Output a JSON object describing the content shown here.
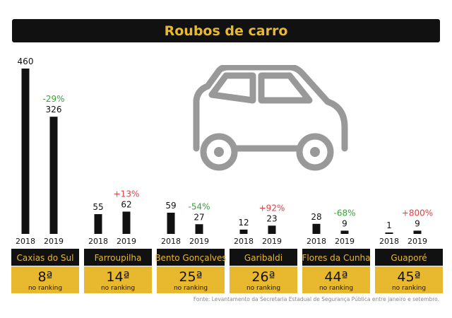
{
  "title": "Roubos de carro",
  "source": "Fonte: Levantamento da Secretaria Estadual de Segurança Pública entre janeiro e setembro.",
  "colors": {
    "accent": "#e8b92e",
    "bar": "#111111",
    "decrease": "#3aa23a",
    "increase": "#e04040",
    "label_bg": "#111111"
  },
  "icon": "car-icon",
  "chart_data": {
    "type": "bar",
    "title": "Roubos de carro",
    "xlabel": "",
    "ylabel": "",
    "ylim": [
      0,
      460
    ],
    "years": [
      "2018",
      "2019"
    ],
    "groups": [
      {
        "city": "Caxias do Sul",
        "values": [
          460,
          326
        ],
        "change": "-29%",
        "rank": "8ª",
        "rank_text": "no ranking"
      },
      {
        "city": "Farroupilha",
        "values": [
          55,
          62
        ],
        "change": "+13%",
        "rank": "14ª",
        "rank_text": "no ranking"
      },
      {
        "city": "Bento Gonçalves",
        "values": [
          59,
          27
        ],
        "change": "-54%",
        "rank": "25ª",
        "rank_text": "no ranking"
      },
      {
        "city": "Garibaldi",
        "values": [
          12,
          23
        ],
        "change": "+92%",
        "rank": "26ª",
        "rank_text": "no ranking"
      },
      {
        "city": "Flores da Cunha",
        "values": [
          28,
          9
        ],
        "change": "-68%",
        "rank": "44ª",
        "rank_text": "no ranking"
      },
      {
        "city": "Guaporé",
        "values": [
          1,
          9
        ],
        "change": "+800%",
        "rank": "45ª",
        "rank_text": "no ranking"
      }
    ]
  }
}
